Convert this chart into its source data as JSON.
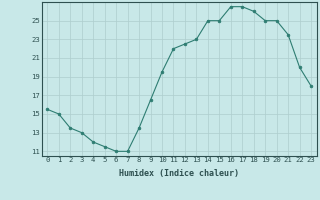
{
  "x": [
    0,
    1,
    2,
    3,
    4,
    5,
    6,
    7,
    8,
    9,
    10,
    11,
    12,
    13,
    14,
    15,
    16,
    17,
    18,
    19,
    20,
    21,
    22,
    23
  ],
  "y": [
    15.5,
    15.0,
    13.5,
    13.0,
    12.0,
    11.5,
    11.0,
    11.0,
    13.5,
    16.5,
    19.5,
    22.0,
    22.5,
    23.0,
    25.0,
    25.0,
    26.5,
    26.5,
    26.0,
    25.0,
    25.0,
    23.5,
    20.0,
    18.0
  ],
  "line_color": "#2e7d72",
  "marker_color": "#2e7d72",
  "bg_color": "#c8e8e8",
  "grid_color": "#aecece",
  "xlabel": "Humidex (Indice chaleur)",
  "xlim": [
    -0.5,
    23.5
  ],
  "ylim": [
    10.5,
    27.0
  ],
  "yticks": [
    11,
    13,
    15,
    17,
    19,
    21,
    23,
    25
  ],
  "xticks": [
    0,
    1,
    2,
    3,
    4,
    5,
    6,
    7,
    8,
    9,
    10,
    11,
    12,
    13,
    14,
    15,
    16,
    17,
    18,
    19,
    20,
    21,
    22,
    23
  ],
  "font_color": "#2e5050",
  "xlabel_fontsize": 6.0,
  "tick_fontsize": 5.2
}
